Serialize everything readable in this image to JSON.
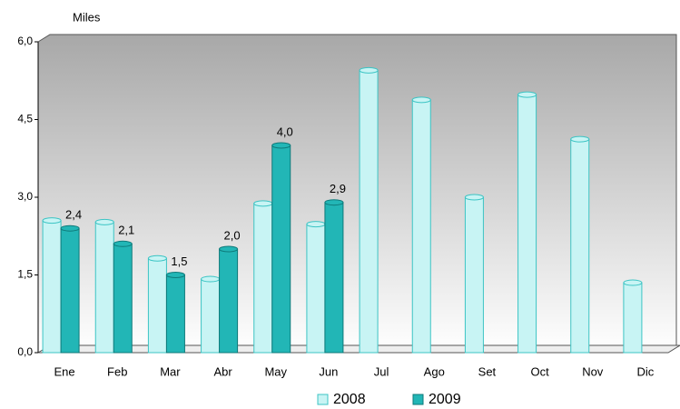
{
  "chart_data": {
    "type": "bar",
    "y_label": "Miles",
    "categories": [
      "Ene",
      "Feb",
      "Mar",
      "Abr",
      "May",
      "Jun",
      "Jul",
      "Ago",
      "Set",
      "Oct",
      "Nov",
      "Dic"
    ],
    "series": [
      {
        "name": "2008",
        "color": "#c8f4f4",
        "edge": "#3cc4c4",
        "values": [
          2.55,
          2.52,
          1.82,
          1.42,
          2.88,
          2.48,
          5.45,
          4.88,
          3.0,
          4.98,
          4.12,
          1.35
        ]
      },
      {
        "name": "2009",
        "color": "#22b6b6",
        "edge": "#0e7a7a",
        "values": [
          2.4,
          2.1,
          1.5,
          2.0,
          4.0,
          2.9,
          null,
          null,
          null,
          null,
          null,
          null
        ],
        "value_labels": [
          "2,4",
          "2,1",
          "1,5",
          "2,0",
          "4,0",
          "2,9",
          null,
          null,
          null,
          null,
          null,
          null
        ]
      }
    ],
    "ylim": [
      0,
      6
    ],
    "yticks": [
      {
        "value": 0,
        "label": "0,0"
      },
      {
        "value": 1.5,
        "label": "1,5"
      },
      {
        "value": 3,
        "label": "3,0"
      },
      {
        "value": 4.5,
        "label": "4,5"
      },
      {
        "value": 6,
        "label": "6,0"
      }
    ],
    "grid": false,
    "legend": "bottom"
  }
}
